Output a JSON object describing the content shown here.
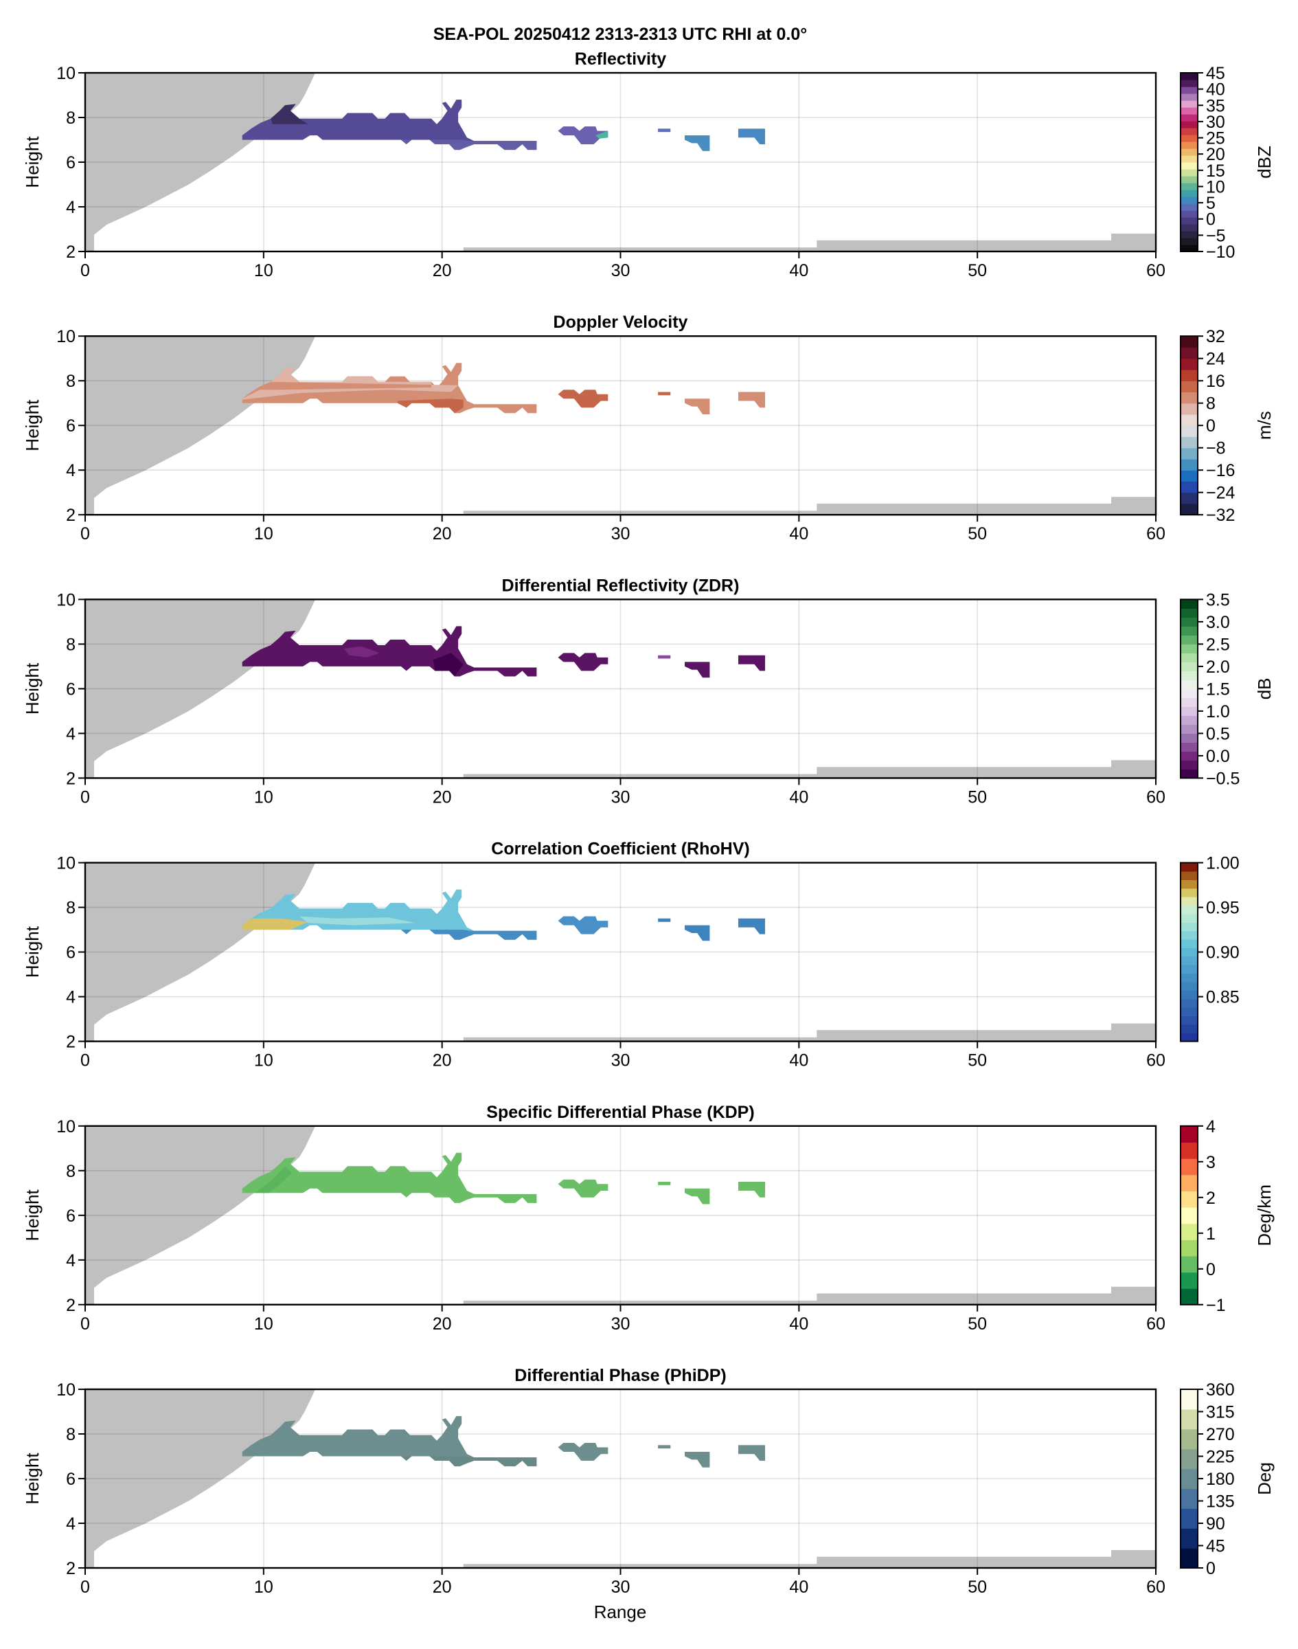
{
  "figure": {
    "suptitle": "SEA-POL 20250412 2313-2313 UTC RHI at 0.0°",
    "xlabel": "Range",
    "ylabel": "Height"
  },
  "chart_data": {
    "type": "heatmap",
    "x_range": [
      0,
      60
    ],
    "y_range": [
      2,
      10
    ],
    "x_ticks": [
      "0",
      "10",
      "20",
      "30",
      "40",
      "50",
      "60"
    ],
    "y_ticks": [
      "2",
      "4",
      "6",
      "8",
      "10"
    ],
    "grid": true,
    "blocked_region_color": "#c0c0c0",
    "blocked_wedge": [
      [
        0,
        2
      ],
      [
        0.5,
        2
      ],
      [
        0.5,
        2.75
      ],
      [
        1.2,
        3.2
      ],
      [
        2.3,
        3.6
      ],
      [
        3.4,
        4.0
      ],
      [
        4.6,
        4.5
      ],
      [
        5.8,
        5.0
      ],
      [
        7.0,
        5.6
      ],
      [
        8.3,
        6.3
      ],
      [
        9.3,
        6.9
      ],
      [
        10.3,
        7.5
      ],
      [
        11.3,
        8.1
      ],
      [
        12.0,
        8.6
      ],
      [
        12.3,
        9.0
      ],
      [
        12.9,
        10
      ],
      [
        0,
        10
      ]
    ],
    "ground_clutter": [
      [
        21.2,
        2
      ],
      [
        21.2,
        2.18
      ],
      [
        41.0,
        2.18
      ],
      [
        41.0,
        2.5
      ],
      [
        57.5,
        2.5
      ],
      [
        57.5,
        2.8
      ],
      [
        60,
        2.8
      ],
      [
        60,
        2
      ]
    ],
    "echoes": {
      "main": [
        [
          8.8,
          7.0
        ],
        [
          8.8,
          7.2
        ],
        [
          9.3,
          7.5
        ],
        [
          9.8,
          7.75
        ],
        [
          10.4,
          7.95
        ],
        [
          10.9,
          8.3
        ],
        [
          11.2,
          8.55
        ],
        [
          11.8,
          8.6
        ],
        [
          11.5,
          8.3
        ],
        [
          12.0,
          7.95
        ],
        [
          14.4,
          7.95
        ],
        [
          14.7,
          8.2
        ],
        [
          16.1,
          8.2
        ],
        [
          16.4,
          7.95
        ],
        [
          16.8,
          7.95
        ],
        [
          17.1,
          8.2
        ],
        [
          17.9,
          8.2
        ],
        [
          18.2,
          7.95
        ],
        [
          19.4,
          7.95
        ],
        [
          19.7,
          7.7
        ],
        [
          20.0,
          7.95
        ],
        [
          20.3,
          8.3
        ],
        [
          20.0,
          8.65
        ],
        [
          20.2,
          8.7
        ],
        [
          20.5,
          8.4
        ],
        [
          20.8,
          8.8
        ],
        [
          21.1,
          8.8
        ],
        [
          21.1,
          8.45
        ],
        [
          20.9,
          8.2
        ],
        [
          20.9,
          7.8
        ],
        [
          21.4,
          7.1
        ],
        [
          21.8,
          6.95
        ],
        [
          25.3,
          6.95
        ],
        [
          25.3,
          6.55
        ],
        [
          24.8,
          6.55
        ],
        [
          24.5,
          6.8
        ],
        [
          24.1,
          6.55
        ],
        [
          23.5,
          6.55
        ],
        [
          23.1,
          6.8
        ],
        [
          21.8,
          6.8
        ],
        [
          21.4,
          6.7
        ],
        [
          21.0,
          6.55
        ],
        [
          20.7,
          6.55
        ],
        [
          20.4,
          6.8
        ],
        [
          19.6,
          6.8
        ],
        [
          19.3,
          7.0
        ],
        [
          18.3,
          7.0
        ],
        [
          18.0,
          6.8
        ],
        [
          17.7,
          7.0
        ],
        [
          13.3,
          7.0
        ],
        [
          13.0,
          7.2
        ],
        [
          12.6,
          7.2
        ],
        [
          12.2,
          7.0
        ]
      ],
      "cells": [
        [
          [
            26.5,
            7.4
          ],
          [
            26.8,
            7.6
          ],
          [
            27.4,
            7.6
          ],
          [
            27.7,
            7.4
          ],
          [
            28.0,
            7.6
          ],
          [
            28.6,
            7.6
          ],
          [
            28.7,
            7.4
          ],
          [
            29.3,
            7.4
          ],
          [
            29.3,
            7.1
          ],
          [
            28.9,
            7.1
          ],
          [
            28.5,
            6.8
          ],
          [
            27.8,
            6.8
          ],
          [
            27.4,
            7.2
          ],
          [
            26.8,
            7.2
          ]
        ],
        [
          [
            32.1,
            7.35
          ],
          [
            32.8,
            7.35
          ],
          [
            32.8,
            7.5
          ],
          [
            32.1,
            7.5
          ]
        ],
        [
          [
            33.6,
            7.2
          ],
          [
            35.0,
            7.2
          ],
          [
            35.0,
            6.5
          ],
          [
            34.6,
            6.5
          ],
          [
            34.3,
            6.85
          ],
          [
            34.0,
            6.85
          ],
          [
            33.6,
            7.0
          ]
        ],
        [
          [
            36.6,
            7.5
          ],
          [
            38.1,
            7.5
          ],
          [
            38.1,
            6.8
          ],
          [
            37.8,
            6.8
          ],
          [
            37.5,
            7.1
          ],
          [
            36.6,
            7.1
          ]
        ]
      ]
    },
    "panels": [
      {
        "title": "Reflectivity",
        "field": "reflectivity",
        "units": "dBZ",
        "vmin": -10,
        "vmax": 45,
        "cbar_ticks": [
          "−10",
          "−5",
          "0",
          "5",
          "10",
          "15",
          "20",
          "25",
          "30",
          "35",
          "40",
          "45"
        ],
        "cbar_tick_values": [
          -10,
          -5,
          0,
          5,
          10,
          15,
          20,
          25,
          30,
          35,
          40,
          45
        ],
        "cmap": [
          "#0b0a0c",
          "#1d1a26",
          "#2a2440",
          "#3a2f5e",
          "#4a3d7e",
          "#5a4e9e",
          "#5a6cb8",
          "#3f89bf",
          "#3fa0a8",
          "#5db496",
          "#96c990",
          "#cfe29a",
          "#f9f6b8",
          "#f3dc8e",
          "#eeb86c",
          "#eb8e50",
          "#e2613f",
          "#cd3d41",
          "#ad1548",
          "#c22a7a",
          "#dc64a8",
          "#e0a4cf",
          "#a97cba",
          "#7f4c9a",
          "#4e1c5c",
          "#2e0b3c"
        ],
        "echo_main": {
          "base": "#544a96",
          "dark": "#3a2f5e",
          "light": "#6760ab"
        },
        "echo_cells": [
          "#6a62b0",
          "#5a70bc",
          "#4a8ec0",
          "#4a88c4"
        ],
        "accent": "#4eb4a0"
      },
      {
        "title": "Doppler Velocity",
        "field": "velocity",
        "units": "m/s",
        "vmin": -32,
        "vmax": 32,
        "cbar_ticks": [
          "−32",
          "−24",
          "−16",
          "−8",
          "0",
          "8",
          "16",
          "24",
          "32"
        ],
        "cbar_tick_values": [
          -32,
          -24,
          -16,
          -8,
          0,
          8,
          16,
          24,
          32
        ],
        "cmap": [
          "#1c1e44",
          "#27306f",
          "#2448ad",
          "#1c6fbe",
          "#4390c0",
          "#77aec7",
          "#adc5cf",
          "#dadcde",
          "#e9dad6",
          "#e0b4a8",
          "#d48d74",
          "#c8664a",
          "#b53e2c",
          "#951629",
          "#711029",
          "#4a0a19"
        ],
        "echo_main": {
          "base": "#d38e74",
          "dark": "#c5664a",
          "light": "#dfb3a6"
        },
        "echo_cells": [
          "#c5664a",
          "#c5664a",
          "#d38e74",
          "#d38e74"
        ],
        "accent": "#e6d3cf"
      },
      {
        "title": "Differential Reflectivity (ZDR)",
        "field": "zdr",
        "units": "dB",
        "vmin": -0.5,
        "vmax": 3.5,
        "cbar_ticks": [
          "−0.5",
          "0.0",
          "0.5",
          "1.0",
          "1.5",
          "2.0",
          "2.5",
          "3.0",
          "3.5"
        ],
        "cbar_tick_values": [
          -0.5,
          0.0,
          0.5,
          1.0,
          1.5,
          2.0,
          2.5,
          3.0,
          3.5
        ],
        "cmap": [
          "#40004b",
          "#5a1463",
          "#76287e",
          "#8a4e99",
          "#9a70ae",
          "#b08fc1",
          "#c5a8d3",
          "#dac4e3",
          "#e7d7eb",
          "#f0eaf3",
          "#ebf2ea",
          "#daf0d6",
          "#c6e8bf",
          "#aedfa4",
          "#89ca85",
          "#62b16a",
          "#3e9552",
          "#237a3e",
          "#12632e",
          "#00441b"
        ],
        "echo_main": {
          "base": "#5a1463",
          "dark": "#40004b",
          "light": "#76287e"
        },
        "echo_cells": [
          "#5a1463",
          "#8a4e99",
          "#5a1463",
          "#5a1463"
        ],
        "accent": "#9a70ae"
      },
      {
        "title": "Correlation Coefficient (RhoHV)",
        "field": "rhohv",
        "units": "",
        "vmin": 0.8,
        "vmax": 1.0,
        "cbar_ticks": [
          "0.85",
          "0.90",
          "0.95",
          "1.00"
        ],
        "cbar_tick_values": [
          0.85,
          0.9,
          0.95,
          1.0
        ],
        "cmap": [
          "#21359b",
          "#25449f",
          "#2b52a6",
          "#305fad",
          "#3569b2",
          "#3877b8",
          "#3d84bf",
          "#4490c4",
          "#4c9dcb",
          "#55aad0",
          "#5db6d4",
          "#6ac5d7",
          "#84d3d8",
          "#9fdfd5",
          "#b5e7d5",
          "#c8edd2",
          "#e0e8ae",
          "#d6c766",
          "#bd8c30",
          "#9e5619",
          "#7f1b0a"
        ],
        "echo_main": {
          "base": "#6ec4da",
          "dark": "#3d84bf",
          "light": "#a7e1dc"
        },
        "echo_cells": [
          "#4a90c8",
          "#3d84bf",
          "#3d84bf",
          "#3d84bf"
        ],
        "accent": "#d9c265"
      },
      {
        "title": "Specific Differential Phase (KDP)",
        "field": "kdp",
        "units": "Deg/km",
        "vmin": -1,
        "vmax": 4,
        "cbar_ticks": [
          "−1",
          "0",
          "1",
          "2",
          "3",
          "4"
        ],
        "cbar_tick_values": [
          -1,
          0,
          1,
          2,
          3,
          4
        ],
        "cmap": [
          "#006837",
          "#1a9850",
          "#66bd63",
          "#a6d96a",
          "#d9ef8b",
          "#ffffbf",
          "#fee08b",
          "#fdae61",
          "#f46d43",
          "#d73027",
          "#a50026"
        ],
        "echo_main": {
          "base": "#6abf66",
          "dark": "#5bb55c",
          "light": "#6abf66"
        },
        "echo_cells": [
          "#6abf66",
          "#6abf66",
          "#6abf66",
          "#6abf66"
        ],
        "accent": "#5bb55c"
      },
      {
        "title": "Differential Phase (PhiDP)",
        "field": "phidp",
        "units": "Deg",
        "vmin": 0,
        "vmax": 360,
        "cbar_ticks": [
          "0",
          "45",
          "90",
          "135",
          "180",
          "225",
          "270",
          "315",
          "360"
        ],
        "cbar_tick_values": [
          0,
          45,
          90,
          135,
          180,
          225,
          270,
          315,
          360
        ],
        "cmap": [
          "#00103f",
          "#0f2a6b",
          "#285196",
          "#4a73a0",
          "#6a8c94",
          "#85a08f",
          "#a6b98f",
          "#d4dcac",
          "#fbfbe8"
        ],
        "echo_main": {
          "base": "#6d8e8e",
          "dark": "#638684",
          "light": "#7c9a98"
        },
        "echo_cells": [
          "#6d8e8e",
          "#6d8e8e",
          "#6d8e8e",
          "#6d8e8e"
        ],
        "accent": "#86a09e"
      }
    ]
  }
}
